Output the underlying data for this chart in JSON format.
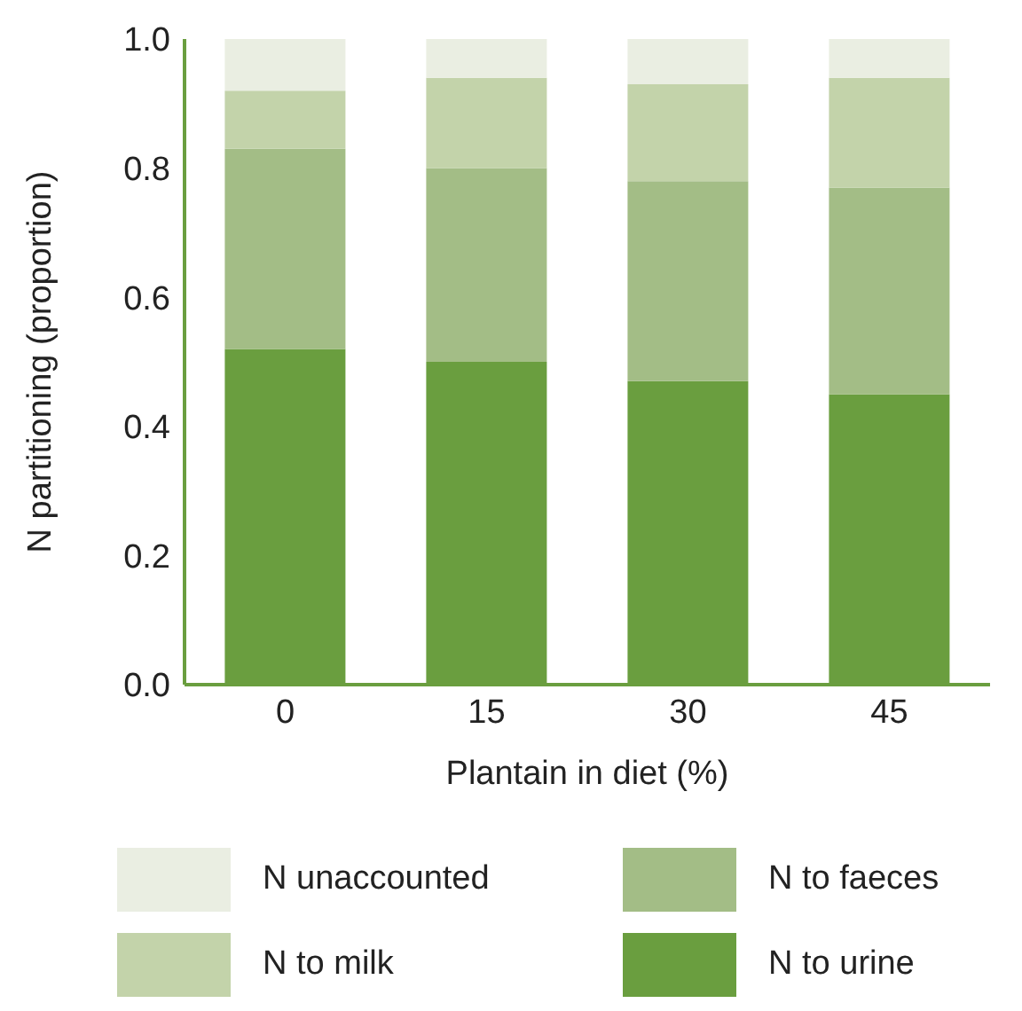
{
  "chart_data": {
    "type": "bar",
    "stacked": true,
    "xlabel": "Plantain in diet (%)",
    "ylabel": "N partitioning (proportion)",
    "categories": [
      "0",
      "15",
      "30",
      "45"
    ],
    "series": [
      {
        "name": "N to urine",
        "color": "#6a9e3f",
        "values": [
          0.52,
          0.5,
          0.47,
          0.45
        ]
      },
      {
        "name": "N to faeces",
        "color": "#a3bd86",
        "values": [
          0.31,
          0.3,
          0.31,
          0.32
        ]
      },
      {
        "name": "N to milk",
        "color": "#c3d3aa",
        "values": [
          0.09,
          0.14,
          0.15,
          0.17
        ]
      },
      {
        "name": "N unaccounted",
        "color": "#eaeee2",
        "values": [
          0.08,
          0.06,
          0.07,
          0.06
        ]
      }
    ],
    "ylim": [
      0,
      1
    ],
    "yticks": [
      {
        "value": 0,
        "label": "0.0"
      },
      {
        "value": 0.2,
        "label": "0.2"
      },
      {
        "value": 0.4,
        "label": "0.4"
      },
      {
        "value": 0.6,
        "label": "0.6"
      },
      {
        "value": 0.8,
        "label": "0.8"
      },
      {
        "value": 1,
        "label": "1.0"
      }
    ],
    "grid": false,
    "legend": "bottom"
  }
}
